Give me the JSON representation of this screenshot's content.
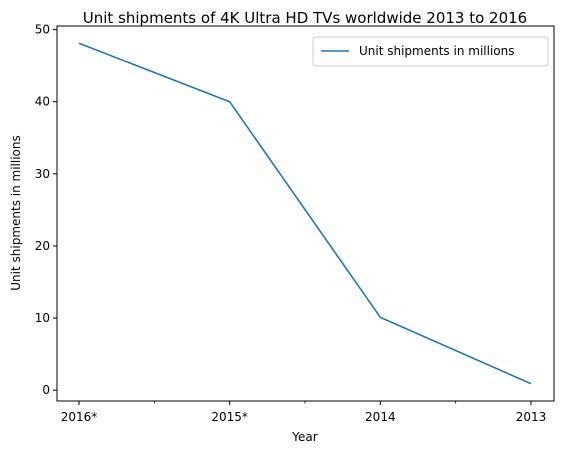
{
  "chart_data": {
    "type": "line",
    "title": "Unit shipments of 4K Ultra HD TVs worldwide 2013 to 2016",
    "xlabel": "Year",
    "ylabel": "Unit shipments in millions",
    "categories": [
      "2016*",
      "2015*",
      "2014",
      "2013"
    ],
    "series": [
      {
        "name": "Unit shipments in millions",
        "values": [
          48.1,
          40,
          10.1,
          0.9
        ],
        "color": "#1f77b4"
      }
    ],
    "ylim": [
      -1.5,
      50.5
    ],
    "yticks": [
      0,
      10,
      20,
      30,
      40,
      50
    ],
    "grid": false,
    "legend": "top-right"
  }
}
